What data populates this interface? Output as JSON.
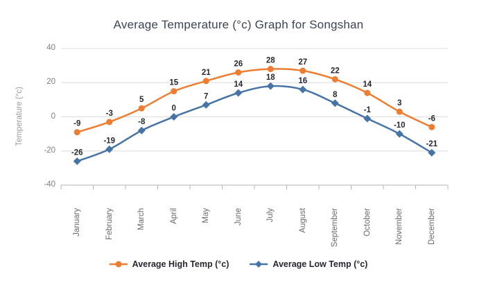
{
  "chart_data": {
    "type": "line",
    "title": "Average Temperature (°c) Graph for Songshan",
    "xlabel": "",
    "ylabel": "Temperature (°c)",
    "categories": [
      "January",
      "February",
      "March",
      "April",
      "May",
      "June",
      "July",
      "August",
      "September",
      "October",
      "November",
      "December"
    ],
    "yticks": [
      40,
      20,
      0,
      -20,
      -40
    ],
    "ylim": [
      -40,
      40
    ],
    "grid": "horizontal",
    "legend_position": "bottom",
    "series": [
      {
        "name": "Average High Temp (°c)",
        "color": "#ED7D31",
        "marker": "circle",
        "values": [
          -9,
          -3,
          5,
          15,
          21,
          26,
          28,
          27,
          22,
          14,
          3,
          -6
        ]
      },
      {
        "name": "Average Low Temp (°c)",
        "color": "#4674A6",
        "marker": "diamond",
        "values": [
          -26,
          -19,
          -8,
          0,
          7,
          14,
          18,
          16,
          8,
          -1,
          -10,
          -21
        ]
      }
    ],
    "colors": {
      "gridline": "#DCDCDC",
      "axis_line": "#B3B3B3",
      "data_label": "#262931"
    }
  }
}
